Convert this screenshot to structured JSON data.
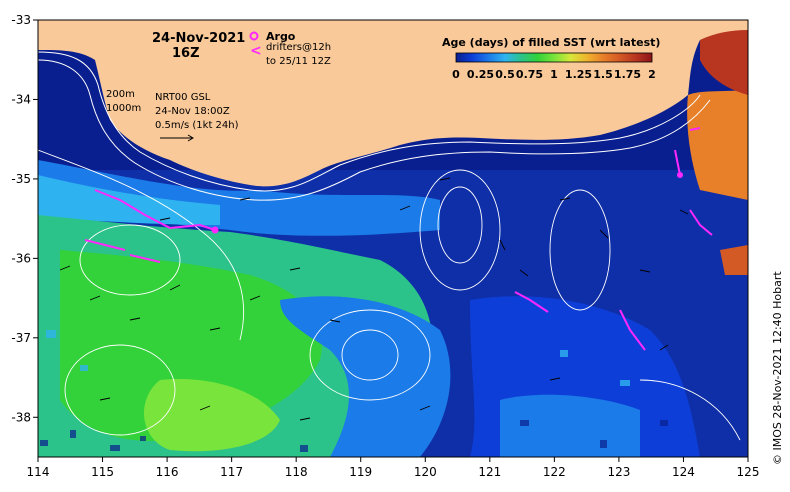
{
  "map": {
    "lon_ticks": [
      "114",
      "115",
      "116",
      "117",
      "118",
      "119",
      "120",
      "121",
      "122",
      "123",
      "124",
      "125"
    ],
    "lat_ticks": [
      "-33",
      "-34",
      "-35",
      "-36",
      "-37",
      "-38"
    ],
    "lon_range": [
      114,
      125
    ],
    "lat_range": [
      -38.5,
      -33
    ]
  },
  "header": {
    "date": "24-Nov-2021",
    "hour": "16Z"
  },
  "legend": {
    "argo": "Argo",
    "drifters": "drifters@12h",
    "drifters_to": "to 25/11 12Z",
    "isobath_1": "200m",
    "isobath_2": "1000m",
    "altimetry": "NRT00 GSL",
    "alt_date": "24-Nov 18:00Z",
    "scale": "0.5m/s (1kt 24h)"
  },
  "colorbar": {
    "title": "Age (days) of filled SST (wrt latest)",
    "ticks": [
      "0",
      "0.25",
      "0.5",
      "0.75",
      "1",
      "1.25",
      "1.5",
      "1.75",
      "2"
    ],
    "colors": [
      "#0a1f8f",
      "#0d3fd8",
      "#1b7be8",
      "#2fb3f0",
      "#2cc38a",
      "#33d23a",
      "#79e43b",
      "#d6e73a",
      "#f0b52e",
      "#e8802a",
      "#d45a25",
      "#b83520",
      "#8c1418"
    ]
  },
  "credit": "© IMOS 28-Nov-2021 12:40 Hobart",
  "colors": {
    "land": "#f9c99a",
    "magenta": "#ff28ff",
    "contour": "#ffffff"
  }
}
